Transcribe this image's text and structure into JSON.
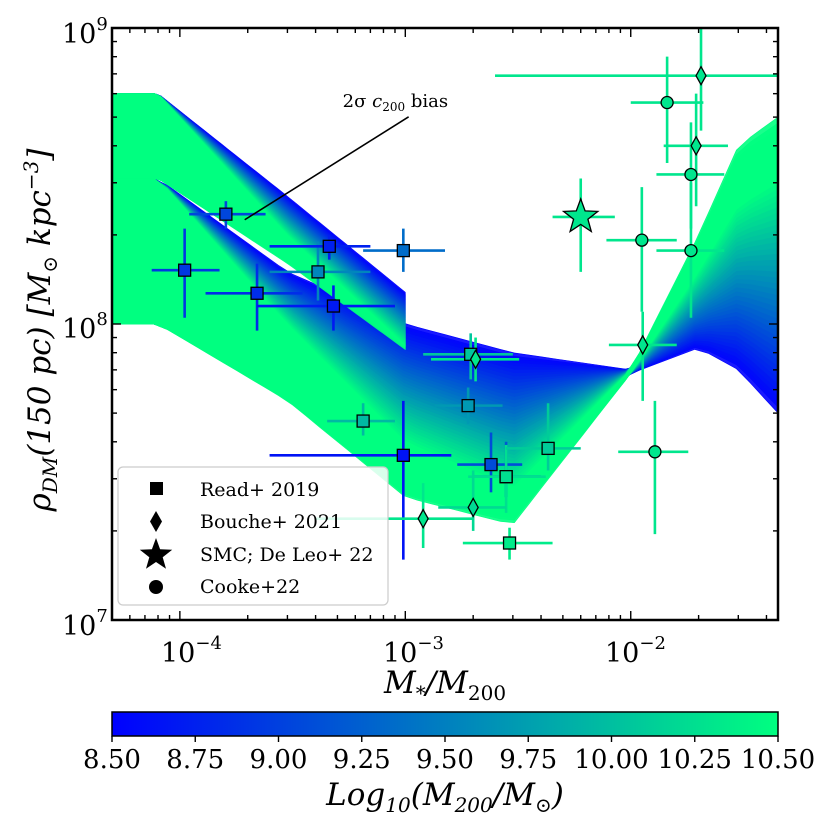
{
  "chart_data": {
    "type": "scatter",
    "title": "",
    "xlabel": "M*/M200",
    "xlabel_parts": {
      "main": "M",
      "sub1": "*",
      "slash": "/M",
      "sub2": "200"
    },
    "ylabel": "ρDM(150 pc) [M⊙ kpc−3]",
    "ylabel_parts": {
      "rho": "ρ",
      "rho_sub": "DM",
      "mid": "(150 pc) [M",
      "sun": "⊙",
      "unit": " kpc",
      "exp": "−3",
      "end": "]"
    },
    "xscale": "log",
    "yscale": "log",
    "xlim": [
      5e-05,
      0.045
    ],
    "ylim": [
      10000000.0,
      1000000000.0
    ],
    "xticks": [
      {
        "value": 0.0001,
        "base": "10",
        "exp": "−4"
      },
      {
        "value": 0.001,
        "base": "10",
        "exp": "−3"
      },
      {
        "value": 0.01,
        "base": "10",
        "exp": "−2"
      }
    ],
    "yticks": [
      {
        "value": 10000000.0,
        "base": "10",
        "exp": "7"
      },
      {
        "value": 100000000.0,
        "base": "10",
        "exp": "8"
      },
      {
        "value": 1000000000.0,
        "base": "10",
        "exp": "9"
      }
    ],
    "annotation": {
      "text_parts": {
        "a": "2σ ",
        "b": "c",
        "bsub": "200",
        "c": " bias"
      },
      "text": "2σ c200 bias",
      "arrow_to": [
        0.00019,
        225000000.0
      ],
      "text_at": [
        0.0011,
        550000000.0
      ]
    },
    "colorbar": {
      "label": "Log10(M200/M⊙)",
      "label_parts": {
        "a": "Log",
        "asub": "10",
        "b": "(M",
        "bsub": "200",
        "c": "/M",
        "sun": "⊙",
        "d": ")"
      },
      "min": 8.5,
      "max": 10.5,
      "colors": [
        "#0000ff",
        "#00ff80"
      ],
      "ticks": [
        "8.50",
        "8.75",
        "9.00",
        "9.25",
        "9.50",
        "9.75",
        "10.00",
        "10.25",
        "10.50"
      ]
    },
    "legend": {
      "position": "lower-left",
      "entries": [
        {
          "marker": "square",
          "label": "Read+ 2019"
        },
        {
          "marker": "diamond",
          "label": "Bouche+ 2021"
        },
        {
          "marker": "star",
          "label": "SMC; De Leo+ 22"
        },
        {
          "marker": "circle",
          "label": "Cooke+22"
        }
      ]
    },
    "bands": [
      {
        "name": "wide-band",
        "x_end": 0.045,
        "curves": [
          {
            "m": 8.5,
            "upper": [
              [
                5e-05,
                310000000.0
              ],
              [
                8e-05,
                310000000.0
              ],
              [
                0.0003,
                150000000.0
              ],
              [
                0.001,
                100000000.0
              ],
              [
                0.003,
                80000000.0
              ],
              [
                0.01,
                70000000.0
              ],
              [
                0.02,
                90000000.0
              ],
              [
                0.03,
                108000000.0
              ],
              [
                0.045,
                80000000.0
              ]
            ],
            "lower": [
              [
                5e-05,
                100000000.0
              ],
              [
                8e-05,
                100000000.0
              ],
              [
                0.0003,
                65000000.0
              ],
              [
                0.0008,
                46000000.0
              ],
              [
                0.002,
                43000000.0
              ],
              [
                0.005,
                50000000.0
              ],
              [
                0.01,
                68000000.0
              ],
              [
                0.02,
                83000000.0
              ],
              [
                0.03,
                70000000.0
              ],
              [
                0.045,
                50000000.0
              ]
            ]
          },
          {
            "m": 10.5,
            "upper": [
              [
                5e-05,
                310000000.0
              ],
              [
                8e-05,
                310000000.0
              ],
              [
                0.0003,
                100000000.0
              ],
              [
                0.001,
                40000000.0
              ],
              [
                0.003,
                28000000.0
              ],
              [
                0.01,
                70000000.0
              ],
              [
                0.02,
                200000000.0
              ],
              [
                0.03,
                400000000.0
              ],
              [
                0.045,
                500000000.0
              ]
            ],
            "lower": [
              [
                5e-05,
                100000000.0
              ],
              [
                8e-05,
                100000000.0
              ],
              [
                0.0003,
                55000000.0
              ],
              [
                0.001,
                26000000.0
              ],
              [
                0.003,
                21000000.0
              ],
              [
                0.01,
                68000000.0
              ],
              [
                0.02,
                150000000.0
              ],
              [
                0.03,
                250000000.0
              ],
              [
                0.045,
                300000000.0
              ]
            ]
          }
        ]
      },
      {
        "name": "c200-bias-band",
        "x_end": 0.001,
        "curves": [
          {
            "m": 8.5,
            "upper": [
              [
                5e-05,
                600000000.0
              ],
              [
                8e-05,
                600000000.0
              ],
              [
                0.0003,
                270000000.0
              ],
              [
                0.001,
                128000000.0
              ]
            ],
            "lower": [
              [
                5e-05,
                310000000.0
              ],
              [
                8e-05,
                310000000.0
              ],
              [
                0.00015,
                250000000.0
              ],
              [
                0.0003,
                210000000.0
              ],
              [
                0.001,
                125000000.0
              ]
            ]
          },
          {
            "m": 10.5,
            "upper": [
              [
                5e-05,
                600000000.0
              ],
              [
                8e-05,
                600000000.0
              ],
              [
                0.0003,
                200000000.0
              ],
              [
                0.001,
                85000000.0
              ]
            ],
            "lower": [
              [
                5e-05,
                310000000.0
              ],
              [
                8e-05,
                310000000.0
              ],
              [
                0.0003,
                160000000.0
              ],
              [
                0.001,
                82000000.0
              ]
            ]
          }
        ]
      }
    ],
    "series": [
      {
        "name": "Read+ 2019",
        "marker": "square",
        "points": [
          {
            "x": 0.000105,
            "y": 152000000.0,
            "xerr": [
              7.5e-05,
              0.00015
            ],
            "yerr": [
              105000000.0,
              210000000.0
            ],
            "m": 8.95
          },
          {
            "x": 0.00016,
            "y": 235000000.0,
            "xerr": [
              0.00011,
              0.00024
            ],
            "yerr": [
              210000000.0,
              260000000.0
            ],
            "m": 9.05
          },
          {
            "x": 0.00022,
            "y": 127000000.0,
            "xerr": [
              0.00013,
              0.00035
            ],
            "yerr": [
              95000000.0,
              160000000.0
            ],
            "m": 8.85
          },
          {
            "x": 0.00041,
            "y": 150000000.0,
            "xerr": [
              0.00025,
              0.0007
            ],
            "yerr": [
              120000000.0,
              190000000.0
            ],
            "m": 9.55
          },
          {
            "x": 0.00046,
            "y": 183000000.0,
            "xerr": [
              0.00025,
              0.0007
            ],
            "yerr": [
              165000000.0,
              200000000.0
            ],
            "m": 8.75
          },
          {
            "x": 0.00048,
            "y": 115000000.0,
            "xerr": [
              0.00022,
              0.0009
            ],
            "yerr": [
              95000000.0,
              135000000.0
            ],
            "m": 8.7
          },
          {
            "x": 0.00098,
            "y": 177000000.0,
            "xerr": [
              0.00065,
              0.0015
            ],
            "yerr": [
              150000000.0,
              210000000.0
            ],
            "m": 9.35
          },
          {
            "x": 0.00065,
            "y": 47000000.0,
            "xerr": [
              0.00045,
              0.0009
            ],
            "yerr": [
              42000000.0,
              54000000.0
            ],
            "m": 9.95
          },
          {
            "x": 0.00098,
            "y": 36000000.0,
            "xerr": [
              0.00025,
              0.0016
            ],
            "yerr": [
              16000000.0,
              55000000.0
            ],
            "m": 8.65
          },
          {
            "x": 0.00195,
            "y": 79000000.0,
            "xerr": [
              0.0012,
              0.003
            ],
            "yerr": [
              65000000.0,
              93000000.0
            ],
            "m": 10.05
          },
          {
            "x": 0.0019,
            "y": 53000000.0,
            "xerr": [
              0.00135,
              0.0027
            ],
            "yerr": [
              46000000.0,
              61000000.0
            ],
            "m": 9.7
          },
          {
            "x": 0.0024,
            "y": 33500000.0,
            "xerr": [
              0.0017,
              0.0033
            ],
            "yerr": [
              27000000.0,
              43000000.0
            ],
            "m": 9.1
          },
          {
            "x": 0.0028,
            "y": 30500000.0,
            "xerr": [
              0.002,
              0.004
            ],
            "yerr": [
              26000000.0,
              40000000.0
            ],
            "m": 9.2
          },
          {
            "x": 0.0028,
            "y": 30500000.0,
            "xerr": [
              0.0019,
              0.0042
            ],
            "yerr": [
              23000000.0,
              39000000.0
            ],
            "m": 10.25
          },
          {
            "x": 0.0043,
            "y": 38000000.0,
            "xerr": [
              0.0028,
              0.006
            ],
            "yerr": [
              32000000.0,
              54000000.0
            ],
            "m": 10.1
          },
          {
            "x": 0.0029,
            "y": 18200000.0,
            "xerr": [
              0.0018,
              0.0045
            ],
            "yerr": [
              16000000.0,
              20500000.0
            ],
            "m": 10.35
          }
        ]
      },
      {
        "name": "Bouche+ 2021",
        "marker": "diamond",
        "points": [
          {
            "x": 0.00205,
            "y": 76000000.0,
            "xerr": [
              0.0013,
              0.0032
            ],
            "yerr": [
              64000000.0,
              90000000.0
            ],
            "m": 10.3
          },
          {
            "x": 0.0012,
            "y": 22000000.0,
            "xerr": [
              0.0004,
              0.002
            ],
            "yerr": [
              17500000.0,
              29000000.0
            ],
            "m": 10.3
          },
          {
            "x": 0.002,
            "y": 24000000.0,
            "xerr": [
              0.0014,
              0.0028
            ],
            "yerr": [
              20000000.0,
              32000000.0
            ],
            "m": 10.2
          },
          {
            "x": 0.0113,
            "y": 85000000.0,
            "xerr": [
              0.008,
              0.016
            ],
            "yerr": [
              55000000.0,
              110000000.0
            ],
            "m": 10.3
          },
          {
            "x": 0.0195,
            "y": 400000000.0,
            "xerr": [
              0.014,
              0.027
            ],
            "yerr": [
              250000000.0,
              600000000.0
            ],
            "m": 10.3
          },
          {
            "x": 0.0205,
            "y": 690000000.0,
            "xerr": [
              0.0025,
              0.045
            ],
            "yerr": [
              450000000.0,
              1050000000.0
            ],
            "m": 10.3
          }
        ]
      },
      {
        "name": "SMC; De Leo+ 22",
        "marker": "star",
        "points": [
          {
            "x": 0.006,
            "y": 230000000.0,
            "xerr": [
              0.0045,
              0.0085
            ],
            "yerr": [
              150000000.0,
              310000000.0
            ],
            "m": 10.3
          }
        ]
      },
      {
        "name": "Cooke+22",
        "marker": "circle",
        "points": [
          {
            "x": 0.0145,
            "y": 560000000.0,
            "xerr": [
              0.01,
              0.021
            ],
            "yerr": [
              350000000.0,
              800000000.0
            ],
            "m": 10.3
          },
          {
            "x": 0.0185,
            "y": 320000000.0,
            "xerr": [
              0.013,
              0.026
            ],
            "yerr": [
              210000000.0,
              480000000.0
            ],
            "m": 10.3
          },
          {
            "x": 0.0112,
            "y": 192000000.0,
            "xerr": [
              0.0078,
              0.016
            ],
            "yerr": [
              110000000.0,
              290000000.0
            ],
            "m": 10.3
          },
          {
            "x": 0.0185,
            "y": 177000000.0,
            "xerr": [
              0.013,
              0.026
            ],
            "yerr": [
              105000000.0,
              300000000.0
            ],
            "m": 10.3
          },
          {
            "x": 0.0128,
            "y": 37000000.0,
            "xerr": [
              0.0088,
              0.018
            ],
            "yerr": [
              19500000.0,
              55000000.0
            ],
            "m": 10.3
          }
        ]
      }
    ]
  }
}
